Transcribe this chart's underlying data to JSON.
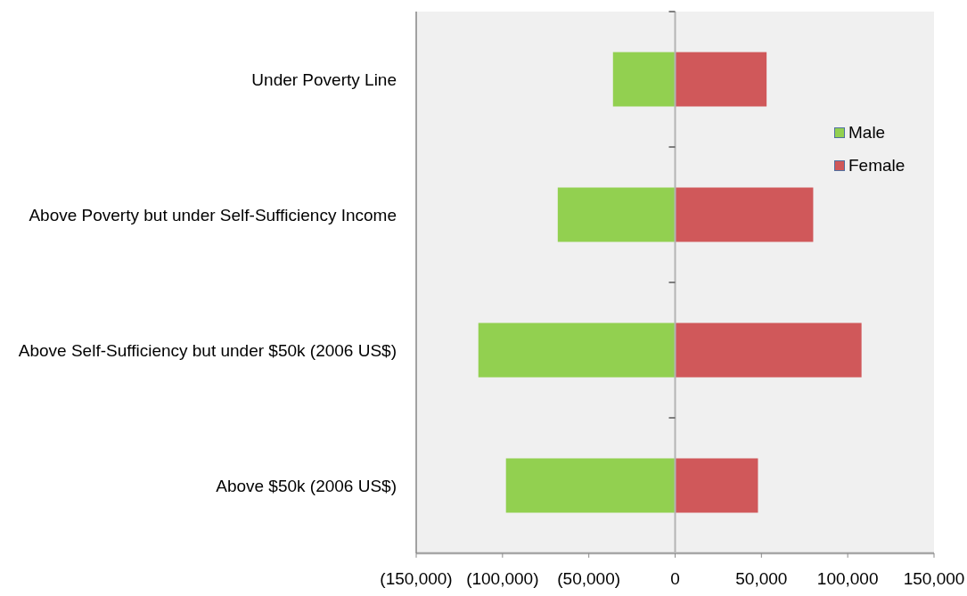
{
  "chart_data": {
    "type": "bar",
    "orientation": "horizontal",
    "stacked": true,
    "categories": [
      "Under Poverty Line",
      "Above Poverty but under Self-Sufficiency Income",
      "Above Self-Sufficiency but under $50k (2006 US$)",
      "Above $50k (2006 US$)"
    ],
    "series": [
      {
        "name": "Male",
        "color": "#92d050",
        "values": [
          -36000,
          -68000,
          -114000,
          -98000
        ]
      },
      {
        "name": "Female",
        "color": "#d0585a",
        "values": [
          53000,
          80000,
          108000,
          48000
        ]
      }
    ],
    "xlim": [
      -150000,
      150000
    ],
    "xticks": [
      {
        "value": -150000,
        "label": "(150,000)"
      },
      {
        "value": -100000,
        "label": "(100,000)"
      },
      {
        "value": -50000,
        "label": "(50,000)"
      },
      0,
      {
        "value": 50000,
        "label": "50,000"
      },
      {
        "value": 100000,
        "label": "100,000"
      },
      {
        "value": 150000,
        "label": "150,000"
      }
    ],
    "legend": "right"
  }
}
